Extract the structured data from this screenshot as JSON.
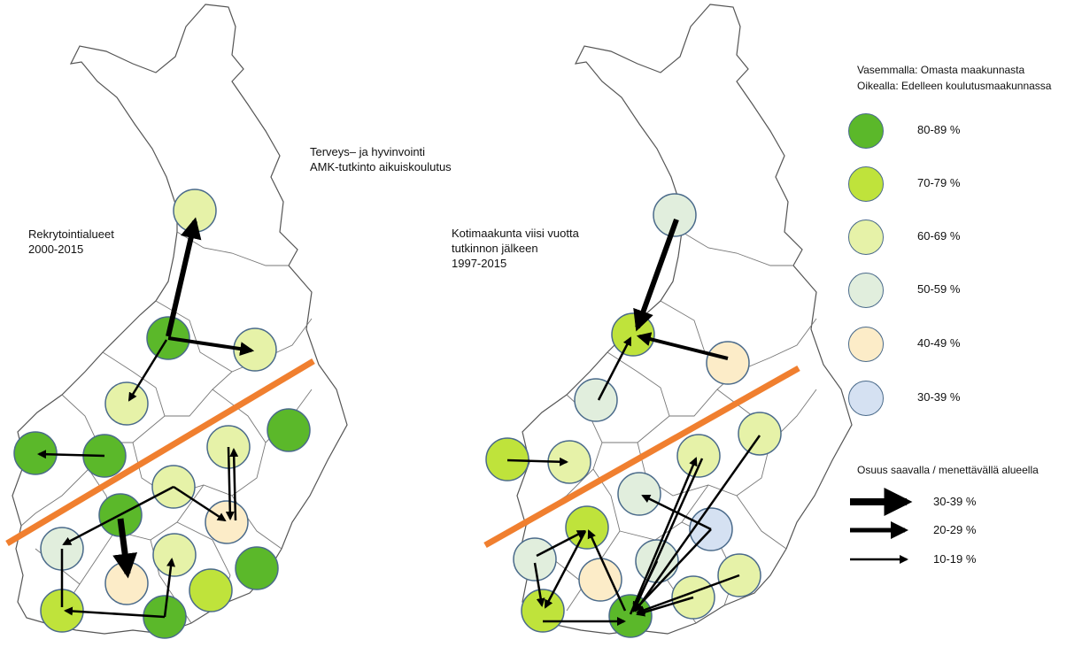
{
  "left_map": {
    "title_line1": "Terveys– ja hyvinvointi",
    "title_line2": "AMK-tutkinto aikuiskoulutus",
    "label_line1": "Rekrytointialueet",
    "label_line2": "2000-2015"
  },
  "right_map": {
    "label_line1": "Kotimaakunta viisi vuotta",
    "label_line2": "tutkinnon jälkeen",
    "label_line3": "1997-2015"
  },
  "legend": {
    "line1": "Vasemmalla: Omasta maakunnasta",
    "line2": "Oikealla: Edelleen koulutusmaakunnassa",
    "classes": [
      {
        "label": "80-89 %",
        "color": "#5bb82a"
      },
      {
        "label": "70-79 %",
        "color": "#bfe33b"
      },
      {
        "label": "60-69 %",
        "color": "#e6f2a8"
      },
      {
        "label": "50-59 %",
        "color": "#e1eedd"
      },
      {
        "label": "40-49 %",
        "color": "#fcecc8"
      },
      {
        "label": "30-39 %",
        "color": "#d5e1f2"
      }
    ],
    "arrow_title": "Osuus saavalla / menettävällä alueella",
    "arrows": [
      {
        "label": "30-39 %"
      },
      {
        "label": "20-29 %"
      },
      {
        "label": "10-19 %"
      }
    ]
  },
  "colors": {
    "divider": "#f07f2f",
    "border": "#555555",
    "circle_stroke": "#4a6a8a",
    "arrow": "#000000"
  }
}
